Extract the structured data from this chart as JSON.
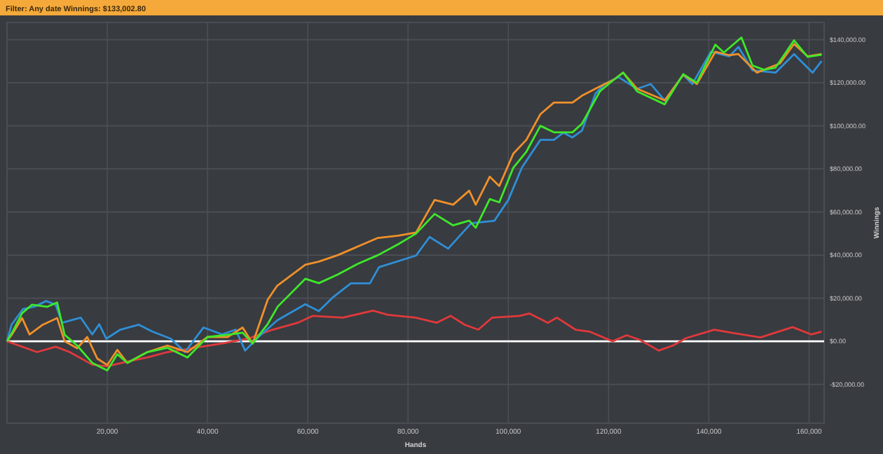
{
  "chart_data": {
    "type": "line",
    "title": "Filter: Any date Winnings: $133,002.80",
    "xlabel": "Hands",
    "ylabel": "Winnings",
    "xlim": [
      0,
      163000
    ],
    "ylim": [
      -38000,
      148000
    ],
    "xticks": [
      {
        "value": 20000,
        "label": "20,000"
      },
      {
        "value": 40000,
        "label": "40,000"
      },
      {
        "value": 60000,
        "label": "60,000"
      },
      {
        "value": 80000,
        "label": "80,000"
      },
      {
        "value": 100000,
        "label": "100,000"
      },
      {
        "value": 120000,
        "label": "120,000"
      },
      {
        "value": 140000,
        "label": "140,000"
      },
      {
        "value": 160000,
        "label": "160,000"
      }
    ],
    "yticks": [
      {
        "value": -20000,
        "label": "-$20,000.00"
      },
      {
        "value": 0,
        "label": "$0.00"
      },
      {
        "value": 20000,
        "label": "$20,000.00"
      },
      {
        "value": 40000,
        "label": "$40,000.00"
      },
      {
        "value": 60000,
        "label": "$60,000.00"
      },
      {
        "value": 80000,
        "label": "$80,000.00"
      },
      {
        "value": 100000,
        "label": "$100,000.00"
      },
      {
        "value": 120000,
        "label": "$120,000.00"
      },
      {
        "value": 140000,
        "label": "$140,000.00"
      }
    ],
    "grid": true,
    "legend": false,
    "ref_lines": [
      {
        "axis": "y",
        "value": 0,
        "color": "#ffffff"
      }
    ],
    "series": [
      {
        "color": "#e0393b",
        "x": [
          0,
          6000,
          9700,
          12500,
          17000,
          20000,
          23500,
          28000,
          32000,
          37000,
          43000,
          48000,
          53000,
          58000,
          61000,
          67000,
          73000,
          76000,
          81500,
          85700,
          88500,
          91300,
          94000,
          96800,
          102300,
          104200,
          107900,
          109700,
          113400,
          116200,
          120800,
          123600,
          126300,
          130000,
          132800,
          135500,
          141100,
          144700,
          150300,
          156700,
          160400,
          162500
        ],
        "values": [
          0,
          -5000,
          -2500,
          -5000,
          -10800,
          -11600,
          -9700,
          -7500,
          -5000,
          -3200,
          -1000,
          1200,
          5400,
          8600,
          11800,
          11000,
          14200,
          12300,
          11000,
          8600,
          11800,
          7700,
          5400,
          11000,
          11800,
          12900,
          8600,
          11000,
          5400,
          4500,
          0,
          2800,
          600,
          -4300,
          -2000,
          1500,
          5400,
          3900,
          1800,
          6600,
          3200,
          4500
        ]
      },
      {
        "color": "#2f8fd6",
        "x": [
          0,
          900,
          3200,
          5500,
          7800,
          9700,
          11000,
          14700,
          17000,
          18400,
          19800,
          22600,
          26300,
          29000,
          32700,
          35500,
          39200,
          42900,
          45600,
          47500,
          50200,
          53900,
          59500,
          62200,
          65000,
          68600,
          72400,
          74200,
          81600,
          84300,
          88000,
          92600,
          97200,
          100000,
          102700,
          106400,
          109100,
          111000,
          112800,
          114700,
          117400,
          119200,
          122000,
          125700,
          128400,
          131200,
          134900,
          136700,
          140400,
          144100,
          145900,
          148700,
          153300,
          157000,
          160700,
          162500
        ],
        "values": [
          0,
          7700,
          15000,
          16100,
          18700,
          17000,
          8600,
          11000,
          3200,
          7900,
          1200,
          5400,
          7700,
          4500,
          1200,
          -5000,
          6400,
          3200,
          5400,
          -4300,
          2100,
          9700,
          17200,
          14000,
          20400,
          26900,
          26900,
          34400,
          39800,
          48400,
          43000,
          54800,
          55900,
          65600,
          80600,
          93500,
          93500,
          96800,
          94600,
          97800,
          115000,
          119400,
          122600,
          117200,
          119400,
          111800,
          123700,
          119400,
          134400,
          132300,
          136600,
          125800,
          124700,
          133300,
          124700,
          130100
        ]
      },
      {
        "color": "#f0902a",
        "x": [
          0,
          1000,
          3000,
          4500,
          7000,
          10000,
          11500,
          14000,
          16000,
          18000,
          20000,
          22000,
          24000,
          28000,
          32000,
          36000,
          40000,
          44000,
          47000,
          49000,
          52000,
          53900,
          59500,
          62200,
          66000,
          70000,
          74000,
          78000,
          81600,
          85300,
          89000,
          92200,
          93500,
          96300,
          98200,
          101000,
          103600,
          106400,
          109100,
          112800,
          114700,
          118300,
          121100,
          122900,
          125700,
          131200,
          134900,
          137600,
          141300,
          144100,
          145900,
          149600,
          154200,
          157000,
          159700,
          162500
        ],
        "values": [
          0,
          3200,
          10800,
          3200,
          7500,
          10800,
          0,
          -3200,
          2000,
          -8000,
          -11000,
          -4000,
          -10000,
          -5000,
          -2000,
          -5000,
          2000,
          2000,
          6400,
          -1000,
          19300,
          25800,
          35500,
          37000,
          40000,
          44000,
          48000,
          49000,
          50500,
          65600,
          63400,
          69900,
          63400,
          76400,
          72100,
          87100,
          93500,
          105400,
          110800,
          110800,
          114000,
          118300,
          121500,
          124700,
          117200,
          111800,
          123700,
          119400,
          134400,
          132800,
          133300,
          124700,
          129000,
          138000,
          132300,
          133300
        ]
      },
      {
        "color": "#3ee82a",
        "x": [
          0,
          1000,
          3000,
          5000,
          8000,
          10000,
          11500,
          14000,
          17000,
          20000,
          22000,
          24000,
          28000,
          32000,
          36000,
          40000,
          44000,
          47000,
          49000,
          52000,
          54000,
          59500,
          62200,
          66000,
          70000,
          74000,
          78000,
          81600,
          85300,
          89000,
          92200,
          93500,
          96300,
          98200,
          101000,
          103600,
          106400,
          109100,
          112800,
          114700,
          118300,
          121100,
          122900,
          125700,
          131200,
          134900,
          137600,
          141300,
          143000,
          146500,
          148700,
          151000,
          153300,
          157000,
          159700,
          162500
        ],
        "values": [
          0,
          4000,
          13000,
          17000,
          16000,
          18000,
          3000,
          -2000,
          -10000,
          -13500,
          -6000,
          -10000,
          -5000,
          -3000,
          -7500,
          2000,
          3000,
          4000,
          -1000,
          8000,
          16100,
          29000,
          27000,
          31000,
          36000,
          40000,
          45000,
          50000,
          59100,
          53800,
          56000,
          52700,
          66000,
          64500,
          80600,
          88000,
          100000,
          97000,
          97000,
          101000,
          116100,
          121500,
          124700,
          116000,
          110000,
          124000,
          120000,
          137700,
          134000,
          141000,
          128000,
          126000,
          127000,
          139700,
          132000,
          133000
        ]
      }
    ]
  }
}
